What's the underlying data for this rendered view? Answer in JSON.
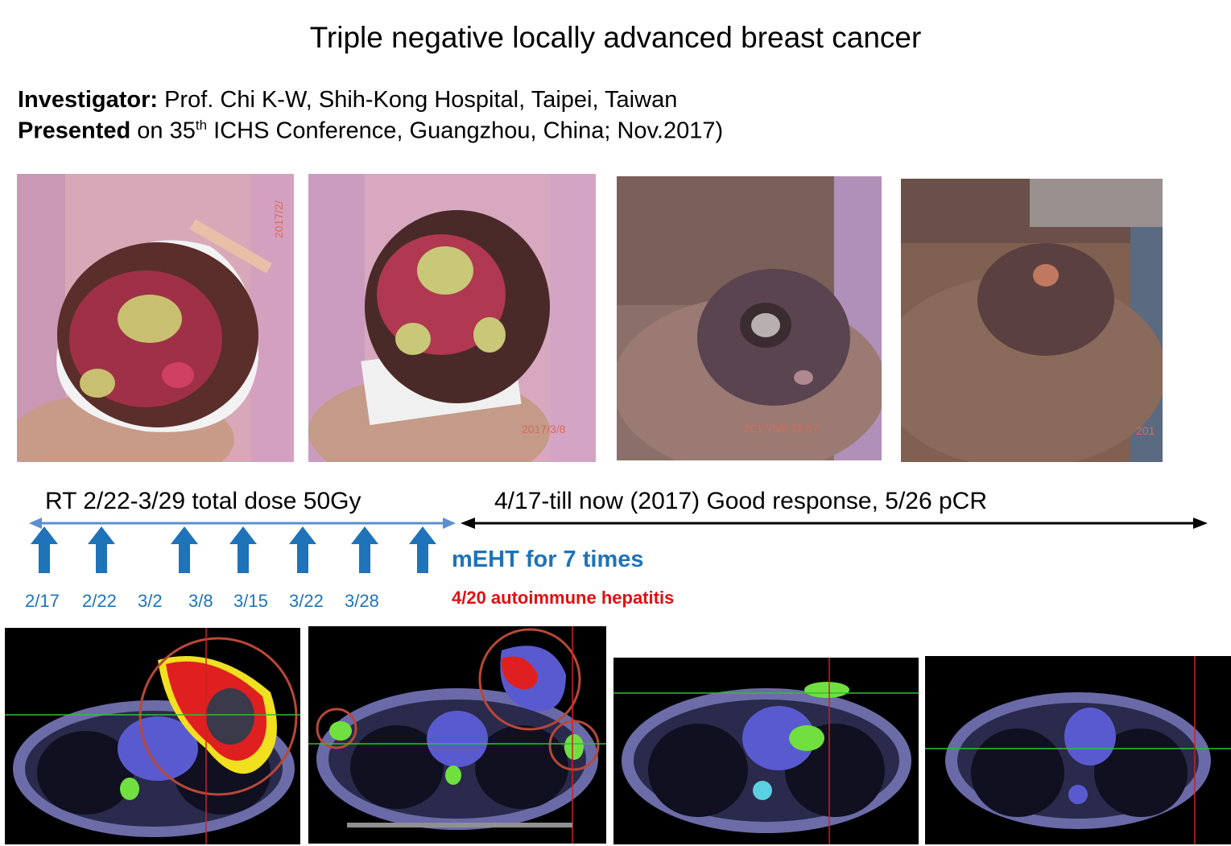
{
  "title": "Triple negative locally advanced breast cancer",
  "investigator": {
    "label": "Investigator:",
    "value": "Prof. Chi K-W, Shih-Kong Hospital, Taipei, Taiwan"
  },
  "presented": {
    "label": "Presented",
    "pre": "on 35",
    "sup": "th",
    "post": "ICHS Conference, Guangzhou, China; Nov.2017)"
  },
  "photos": [
    {
      "stamp": "2017/2/"
    },
    {
      "stamp": "2017/3/8"
    },
    {
      "stamp": "2017/5/8 15:57"
    },
    {
      "stamp": "201"
    }
  ],
  "timeline": {
    "rt_text": "RT 2/22-3/29 total dose 50Gy",
    "followup_text": "4/17-till now (2017) Good response, 5/26 pCR",
    "meht_text": "mEHT for 7 times",
    "hepatitis_text": "4/20 autoimmune hepatitis",
    "dates": [
      "2/17",
      "2/22",
      "3/2",
      "3/8",
      "3/15",
      "3/22",
      "3/28"
    ]
  },
  "colors": {
    "blue": "#1f73b8",
    "red": "#e01010",
    "arrow_light_blue": "#5b8fd0"
  }
}
